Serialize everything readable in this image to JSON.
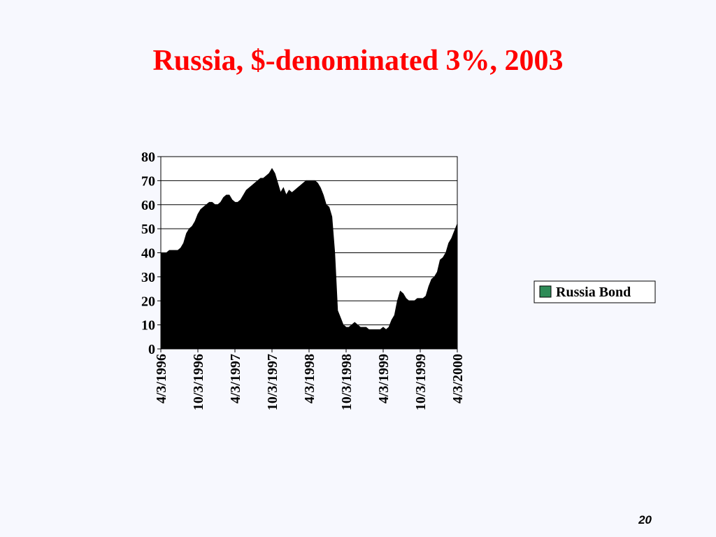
{
  "title": "Russia, $-denominated 3%, 2003",
  "page_number": "20",
  "chart_data": {
    "type": "area",
    "categories": [
      "4/3/1996",
      null,
      null,
      null,
      null,
      null,
      null,
      null,
      null,
      null,
      null,
      null,
      null,
      "10/3/1996",
      null,
      null,
      null,
      null,
      null,
      null,
      null,
      null,
      null,
      null,
      null,
      null,
      "4/3/1997",
      null,
      null,
      null,
      null,
      null,
      null,
      null,
      null,
      null,
      null,
      null,
      null,
      "10/3/1997",
      null,
      null,
      null,
      null,
      null,
      null,
      null,
      null,
      null,
      null,
      null,
      null,
      "4/3/1998",
      null,
      null,
      null,
      null,
      null,
      null,
      null,
      null,
      null,
      null,
      null,
      null,
      "10/3/1998",
      null,
      null,
      null,
      null,
      null,
      null,
      null,
      null,
      null,
      null,
      null,
      null,
      "4/3/1999",
      null,
      null,
      null,
      null,
      null,
      null,
      null,
      null,
      null,
      null,
      null,
      null,
      "10/3/1999",
      null,
      null,
      null,
      null,
      null,
      null,
      null,
      null,
      null,
      null,
      null,
      null,
      "4/3/2000"
    ],
    "series": [
      {
        "name": "Russia Bond",
        "color": "#000000",
        "values": [
          40,
          40,
          40,
          41,
          41,
          41,
          41,
          42,
          44,
          48,
          50,
          51,
          53,
          56,
          58,
          59,
          60,
          61,
          61,
          60,
          60,
          61,
          63,
          64,
          64,
          62,
          61,
          61,
          62,
          64,
          66,
          67,
          68,
          69,
          70,
          71,
          71,
          72,
          73,
          75,
          73,
          69,
          65,
          67,
          64,
          66,
          65,
          66,
          67,
          68,
          69,
          70,
          70,
          70,
          70,
          69,
          67,
          64,
          60,
          59,
          55,
          40,
          16,
          13,
          10,
          9,
          9,
          10,
          11,
          10,
          9,
          9,
          9,
          8,
          8,
          8,
          8,
          8,
          9,
          8,
          9,
          12,
          14,
          20,
          24,
          23,
          21,
          20,
          20,
          20,
          21,
          21,
          21,
          22,
          26,
          29,
          30,
          32,
          37,
          38,
          40,
          44,
          46,
          49,
          52
        ]
      }
    ],
    "ylim": [
      0,
      80
    ],
    "yticks": [
      0,
      10,
      20,
      30,
      40,
      50,
      60,
      70,
      80
    ],
    "grid": true,
    "legend": {
      "position": "right",
      "swatch_color": "#2e8b57"
    }
  }
}
